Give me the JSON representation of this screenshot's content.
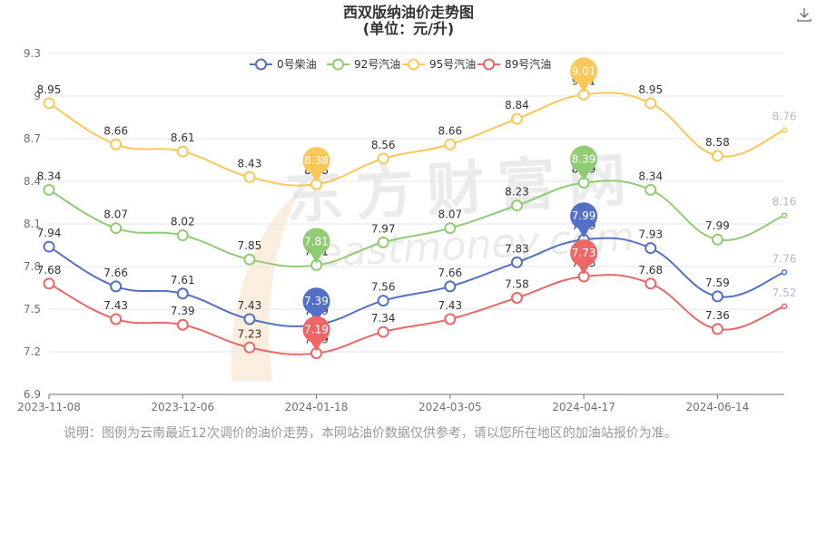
{
  "title": "西双版纳油价走势图",
  "subtitle": "(单位：元/升)",
  "note": "说明：图例为云南最近12次调价的油价走势，本网站油价数据仅供参考，请以您所在地区的加油站报价为准。",
  "watermark": "东方财富网",
  "watermark_sub": "eastmoney.com",
  "colors": {
    "diesel0": "#5470c6",
    "gas92": "#91cc75",
    "gas95": "#fac858",
    "gas89": "#ee6666",
    "axis": "#6e7079",
    "grid": "#e0e6f1",
    "faded_label": "#b0b8d0"
  },
  "icons": {
    "download": "download-icon"
  },
  "chart_data": {
    "type": "line",
    "title": "西双版纳油价走势图",
    "subtitle": "(单位：元/升)",
    "x_tick_labels": [
      "2023-11-08",
      "2023-12-06",
      "2024-01-18",
      "2024-03-05",
      "2024-04-17",
      "2024-06-14"
    ],
    "x_tick_index": [
      0,
      2,
      4,
      6,
      8,
      10
    ],
    "y_ticks": [
      "6.9",
      "7.2",
      "7.5",
      "7.8",
      "8.1",
      "8.4",
      "8.7",
      "9",
      "9.3"
    ],
    "ylim": [
      6.9,
      9.3
    ],
    "grid": true,
    "legend_position": "top",
    "series": [
      {
        "name": "0号柴油",
        "color": "#5470c6",
        "values": [
          7.94,
          7.66,
          7.61,
          7.43,
          7.39,
          7.56,
          7.66,
          7.83,
          7.99,
          7.93,
          7.59,
          7.76
        ],
        "labels": [
          "7.94",
          "7.66",
          "7.61",
          "7.43",
          "7.39",
          "7.56",
          "7.66",
          "7.83",
          "7.99",
          "7.93",
          "7.59",
          "7.76"
        ]
      },
      {
        "name": "92号汽油",
        "color": "#91cc75",
        "values": [
          8.34,
          8.07,
          8.02,
          7.85,
          7.81,
          7.97,
          8.07,
          8.23,
          8.39,
          8.34,
          7.99,
          8.16
        ],
        "labels": [
          "8.34",
          "8.07",
          "8.02",
          "7.85",
          "7.81",
          "7.97",
          "8.07",
          "8.23",
          "8.39",
          "8.34",
          "7.99",
          "8.16"
        ]
      },
      {
        "name": "95号汽油",
        "color": "#fac858",
        "values": [
          8.95,
          8.66,
          8.61,
          8.43,
          8.38,
          8.56,
          8.66,
          8.84,
          9.01,
          8.95,
          8.58,
          8.76
        ],
        "labels": [
          "8.95",
          "8.66",
          "8.61",
          "8.43",
          "8.38",
          "8.56",
          "8.66",
          "8.84",
          "9.01",
          "8.95",
          "8.58",
          "8.76"
        ]
      },
      {
        "name": "89号汽油",
        "color": "#ee6666",
        "values": [
          7.68,
          7.43,
          7.39,
          7.23,
          7.19,
          7.34,
          7.43,
          7.58,
          7.73,
          7.68,
          7.36,
          7.52
        ],
        "labels": [
          "7.68",
          "7.43",
          "7.39",
          "7.23",
          "7.19",
          "7.34",
          "7.43",
          "7.58",
          "7.73",
          "7.68",
          "7.36",
          "7.52"
        ]
      }
    ],
    "markers": [
      {
        "series": 2,
        "type": "min",
        "index": 4,
        "value": "8.38"
      },
      {
        "series": 2,
        "type": "max",
        "index": 8,
        "value": "9.01"
      },
      {
        "series": 1,
        "type": "min",
        "index": 4,
        "value": "7.81"
      },
      {
        "series": 1,
        "type": "max",
        "index": 8,
        "value": "8.39"
      },
      {
        "series": 0,
        "type": "min",
        "index": 4,
        "value": "7.39"
      },
      {
        "series": 0,
        "type": "max",
        "index": 8,
        "value": "7.99"
      },
      {
        "series": 3,
        "type": "min",
        "index": 4,
        "value": "7.19"
      },
      {
        "series": 3,
        "type": "max",
        "index": 8,
        "value": "7.73"
      }
    ]
  }
}
